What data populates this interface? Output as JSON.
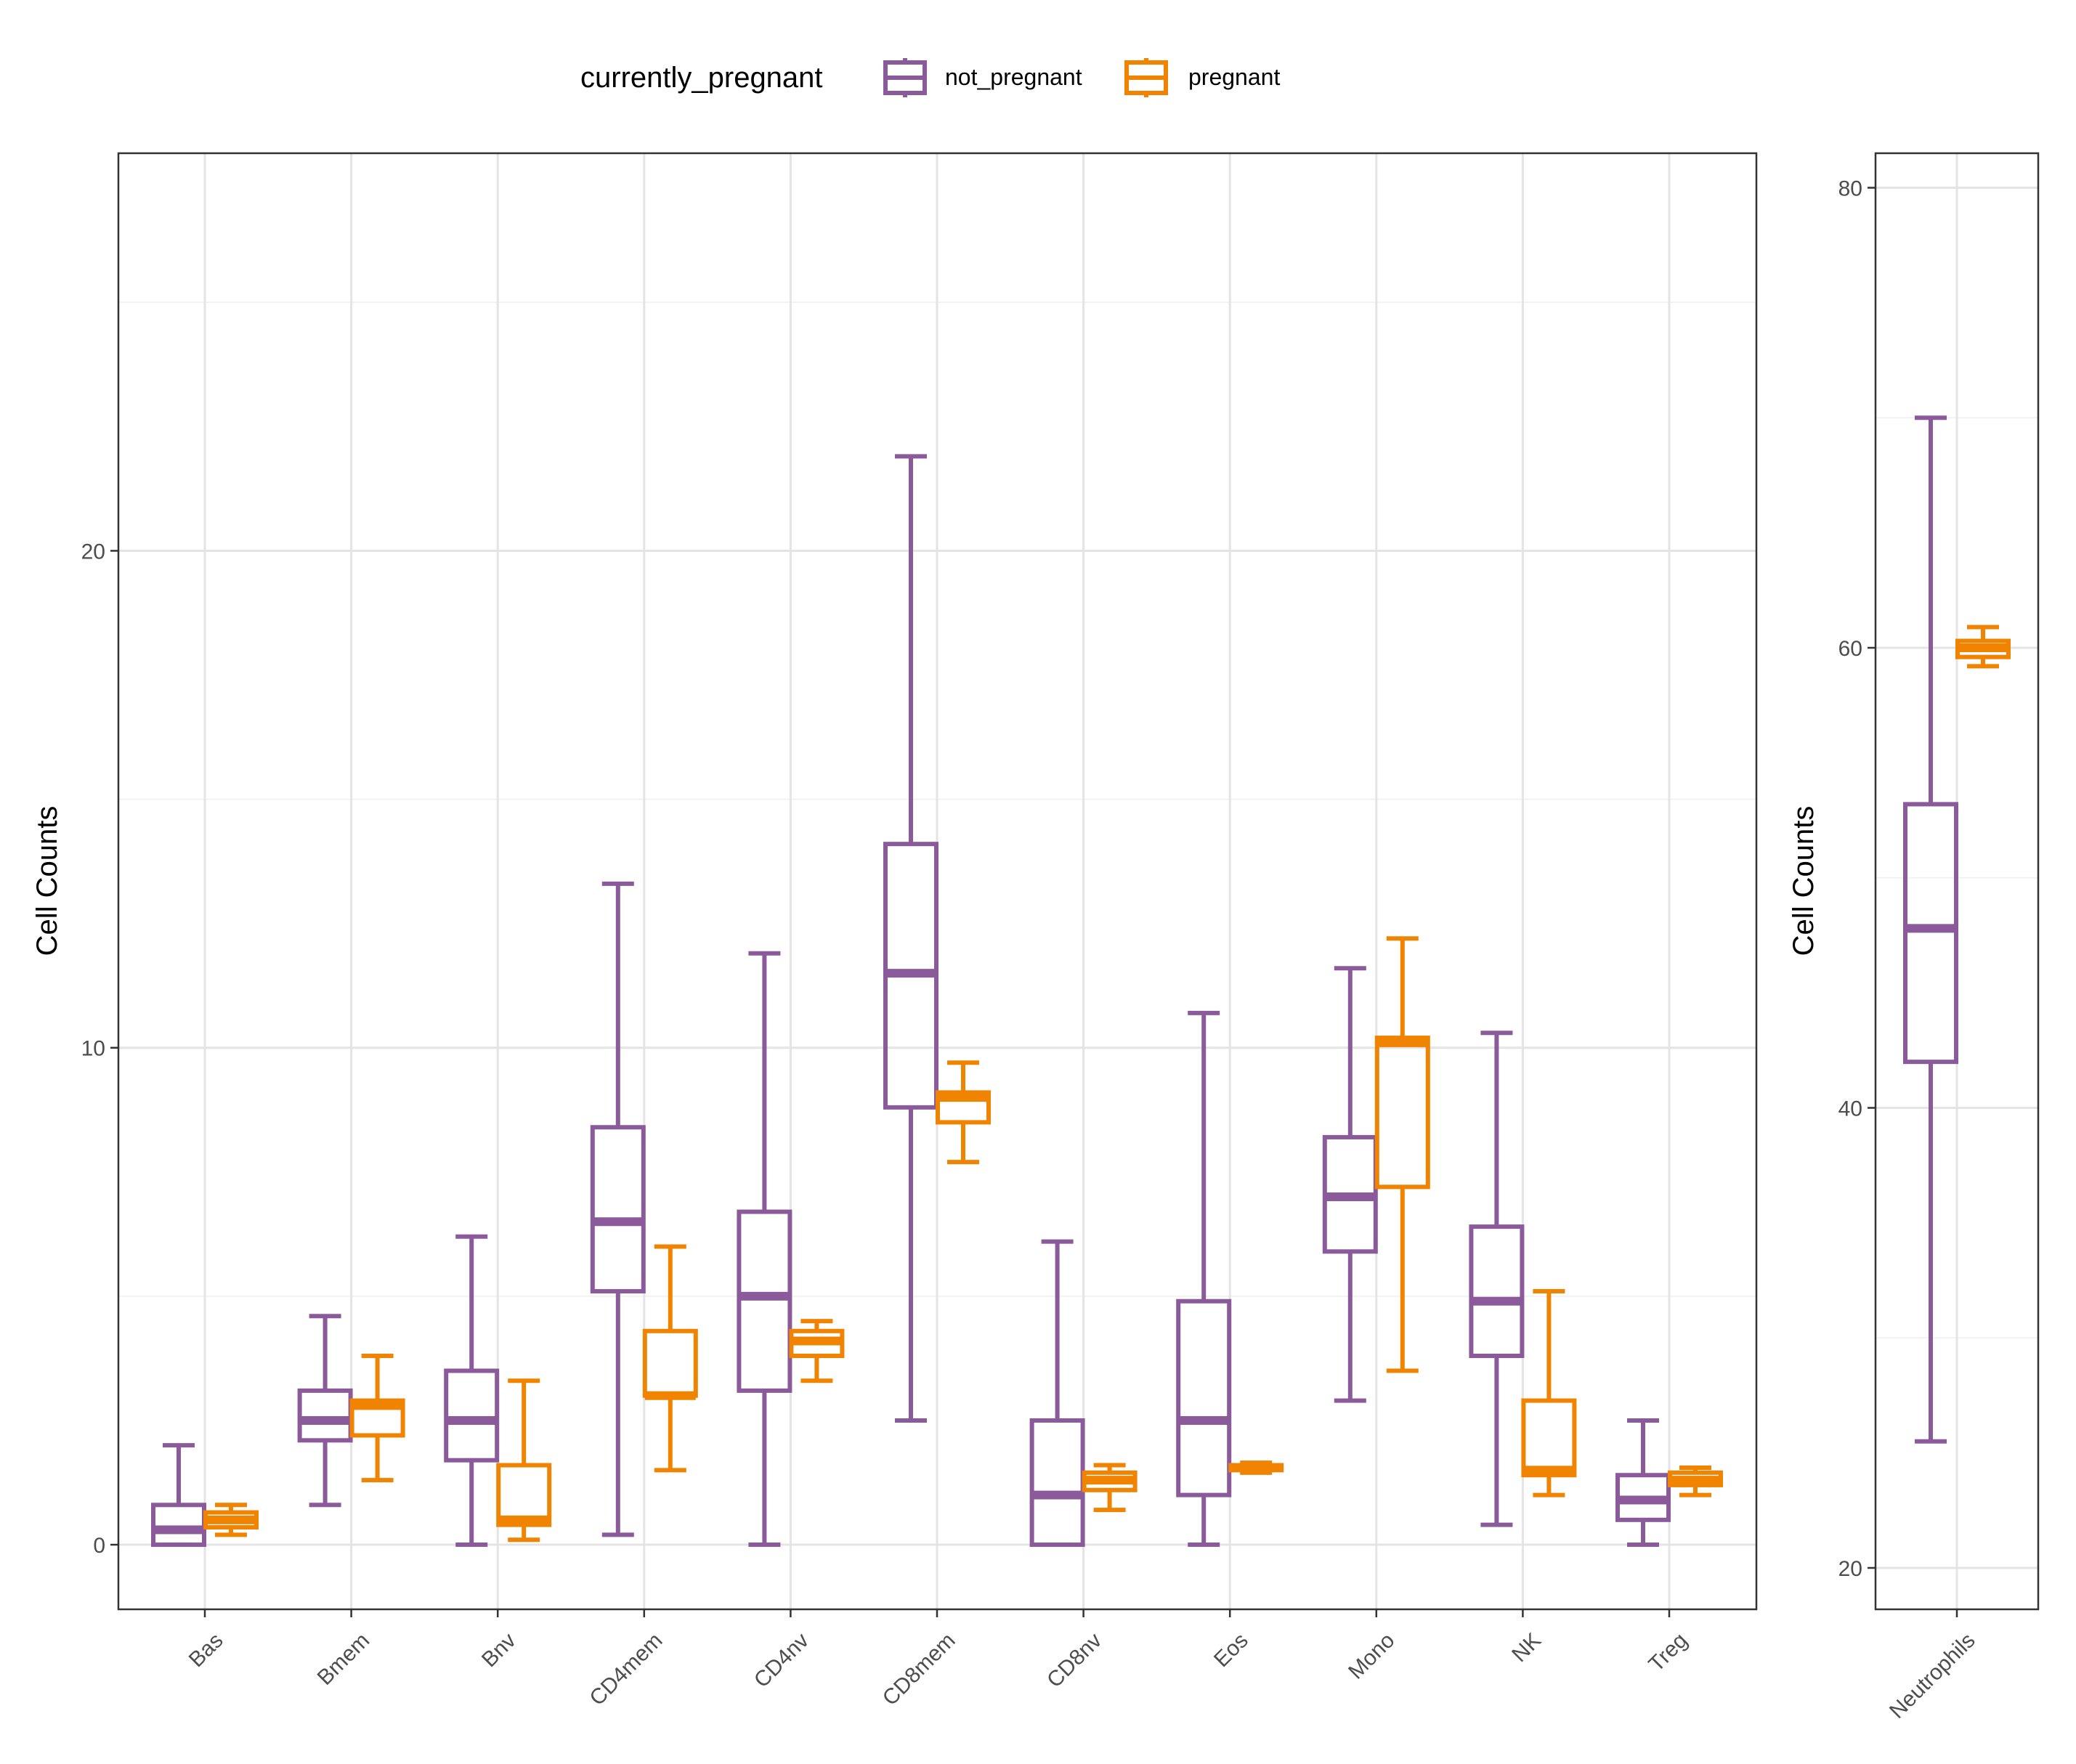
{
  "legend": {
    "title": "currently_pregnant",
    "entries": [
      {
        "label": "not_pregnant",
        "color": "#8B5A9A"
      },
      {
        "label": "pregnant",
        "color": "#F08300"
      }
    ],
    "placement": "top"
  },
  "chart_data": [
    {
      "type": "box",
      "ylabel": "Cell Counts",
      "xlabel": "",
      "ylim": [
        -1.3,
        28.0
      ],
      "yticks": [
        0,
        10,
        20
      ],
      "grid": true,
      "categories": [
        "Bas",
        "Bmem",
        "Bnv",
        "CD4mem",
        "CD4nv",
        "CD8mem",
        "CD8nv",
        "Eos",
        "Mono",
        "NK",
        "Treg"
      ],
      "series": [
        {
          "name": "not_pregnant",
          "color": "#8B5A9A",
          "boxes": [
            {
              "min": 0,
              "q1": 0,
              "median": 0.3,
              "q3": 0.8,
              "max": 2.0
            },
            {
              "min": 0.8,
              "q1": 2.1,
              "median": 2.5,
              "q3": 3.1,
              "max": 4.6
            },
            {
              "min": 0,
              "q1": 1.7,
              "median": 2.5,
              "q3": 3.5,
              "max": 6.2
            },
            {
              "min": 0.2,
              "q1": 5.1,
              "median": 6.5,
              "q3": 8.4,
              "max": 13.3
            },
            {
              "min": 0,
              "q1": 3.1,
              "median": 5.0,
              "q3": 6.7,
              "max": 11.9
            },
            {
              "min": 2.5,
              "q1": 8.8,
              "median": 11.5,
              "q3": 14.1,
              "max": 21.9
            },
            {
              "min": 0,
              "q1": 0,
              "median": 1.0,
              "q3": 2.5,
              "max": 6.1
            },
            {
              "min": 0,
              "q1": 1.0,
              "median": 2.5,
              "q3": 4.9,
              "max": 10.7
            },
            {
              "min": 2.9,
              "q1": 5.9,
              "median": 7.0,
              "q3": 8.2,
              "max": 11.6
            },
            {
              "min": 0.4,
              "q1": 3.8,
              "median": 4.9,
              "q3": 6.4,
              "max": 10.3
            },
            {
              "min": 0,
              "q1": 0.5,
              "median": 0.9,
              "q3": 1.4,
              "max": 2.5
            }
          ]
        },
        {
          "name": "pregnant",
          "color": "#F08300",
          "boxes": [
            {
              "min": 0.2,
              "q1": 0.35,
              "median": 0.5,
              "q3": 0.65,
              "max": 0.8
            },
            {
              "min": 1.3,
              "q1": 2.2,
              "median": 2.8,
              "q3": 2.9,
              "max": 3.8
            },
            {
              "min": 0.1,
              "q1": 0.4,
              "median": 0.5,
              "q3": 1.6,
              "max": 3.3
            },
            {
              "min": 1.5,
              "q1": 3.0,
              "median": 3.0,
              "q3": 4.3,
              "max": 6.0
            },
            {
              "min": 3.3,
              "q1": 3.8,
              "median": 4.1,
              "q3": 4.3,
              "max": 4.5
            },
            {
              "min": 7.7,
              "q1": 8.5,
              "median": 9.0,
              "q3": 9.1,
              "max": 9.7
            },
            {
              "min": 0.7,
              "q1": 1.1,
              "median": 1.3,
              "q3": 1.45,
              "max": 1.6
            },
            {
              "min": 1.45,
              "q1": 1.5,
              "median": 1.55,
              "q3": 1.6,
              "max": 1.65
            },
            {
              "min": 3.5,
              "q1": 7.2,
              "median": 10.1,
              "q3": 10.2,
              "max": 12.2
            },
            {
              "min": 1.0,
              "q1": 1.4,
              "median": 1.5,
              "q3": 2.9,
              "max": 5.1
            },
            {
              "min": 1.0,
              "q1": 1.2,
              "median": 1.3,
              "q3": 1.45,
              "max": 1.55
            }
          ]
        }
      ]
    },
    {
      "type": "box",
      "ylabel": "Cell Counts",
      "xlabel": "",
      "ylim": [
        18.2,
        81.5
      ],
      "yticks": [
        20,
        40,
        60,
        80
      ],
      "grid": true,
      "categories": [
        "Neutrophils"
      ],
      "series": [
        {
          "name": "not_pregnant",
          "color": "#8B5A9A",
          "boxes": [
            {
              "min": 25.5,
              "q1": 42.0,
              "median": 47.8,
              "q3": 53.2,
              "max": 70.0
            }
          ]
        },
        {
          "name": "pregnant",
          "color": "#F08300",
          "boxes": [
            {
              "min": 59.2,
              "q1": 59.6,
              "median": 60.0,
              "q3": 60.3,
              "max": 60.9
            }
          ]
        }
      ]
    }
  ]
}
